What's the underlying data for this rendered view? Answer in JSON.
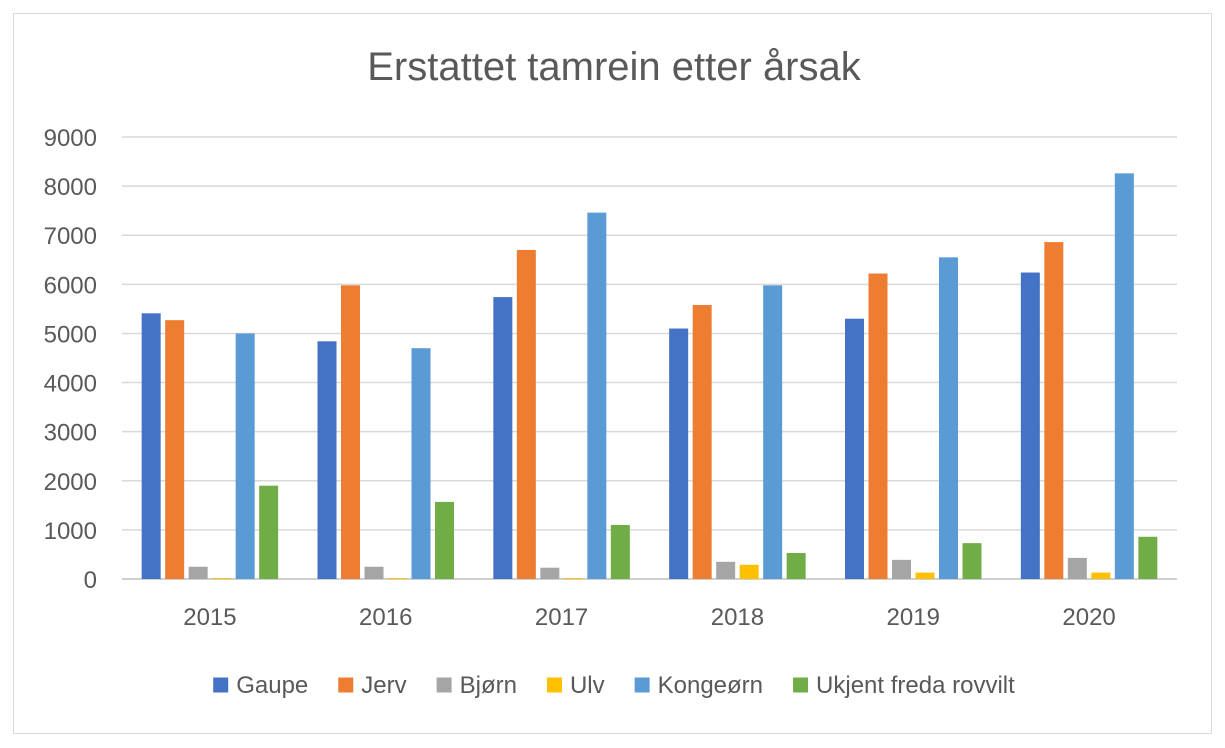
{
  "chart_data": {
    "type": "bar",
    "title": "Erstattet tamrein etter årsak",
    "xlabel": "",
    "ylabel": "",
    "ylim": [
      0,
      9000
    ],
    "yticks": [
      0,
      1000,
      2000,
      3000,
      4000,
      5000,
      6000,
      7000,
      8000,
      9000
    ],
    "grid": true,
    "legend_position": "bottom",
    "categories": [
      "2015",
      "2016",
      "2017",
      "2018",
      "2019",
      "2020"
    ],
    "series": [
      {
        "name": "Gaupe",
        "color": "#4472c4",
        "values": [
          5410,
          4840,
          5740,
          5100,
          5300,
          6240
        ]
      },
      {
        "name": "Jerv",
        "color": "#ed7d31",
        "values": [
          5270,
          5980,
          6700,
          5580,
          6220,
          6860
        ]
      },
      {
        "name": "Bjørn",
        "color": "#a5a5a5",
        "values": [
          250,
          250,
          230,
          350,
          390,
          430
        ]
      },
      {
        "name": "Ulv",
        "color": "#ffc000",
        "values": [
          20,
          20,
          20,
          290,
          130,
          130
        ]
      },
      {
        "name": "Kongeørn",
        "color": "#5b9bd5",
        "values": [
          5000,
          4700,
          7460,
          5980,
          6550,
          8260
        ]
      },
      {
        "name": "Ukjent freda rovvilt",
        "color": "#70ad47",
        "values": [
          1900,
          1570,
          1100,
          530,
          730,
          860
        ]
      }
    ]
  }
}
